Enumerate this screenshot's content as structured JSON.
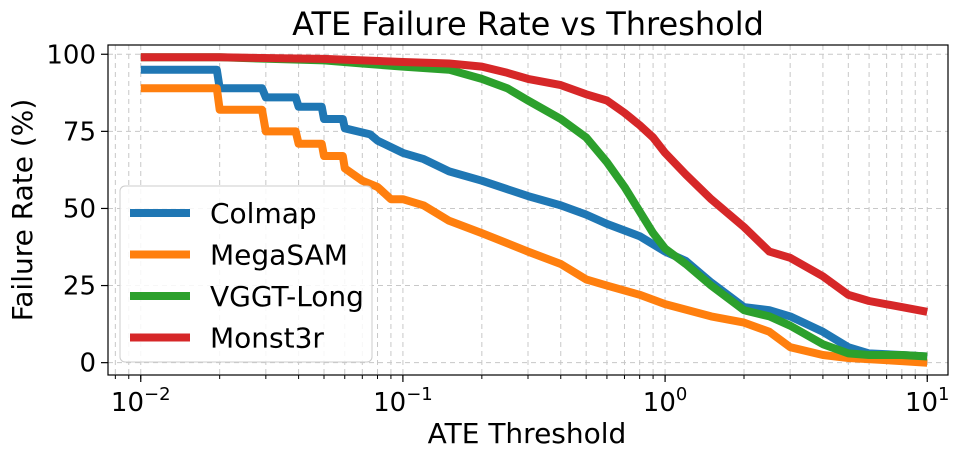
{
  "chart_data": {
    "type": "line",
    "title": "ATE Failure Rate vs Threshold",
    "xlabel": "ATE Threshold",
    "ylabel": "Failure Rate (%)",
    "xscale": "log",
    "xlim": [
      0.0075,
      12
    ],
    "ylim": [
      -4,
      103
    ],
    "grid": true,
    "legend_position": "lower-left",
    "x_ticks": [
      {
        "value": 0.01,
        "base": "10",
        "exp": "−2"
      },
      {
        "value": 0.1,
        "base": "10",
        "exp": "−1"
      },
      {
        "value": 1,
        "base": "10",
        "exp": "0"
      },
      {
        "value": 10,
        "base": "10",
        "exp": "1"
      }
    ],
    "y_ticks": [
      0,
      25,
      50,
      75,
      100
    ],
    "series": [
      {
        "name": "Colmap",
        "color": "#1f77b4",
        "x": [
          0.01,
          0.0195,
          0.02,
          0.029,
          0.03,
          0.039,
          0.04,
          0.049,
          0.05,
          0.059,
          0.06,
          0.075,
          0.08,
          0.1,
          0.12,
          0.15,
          0.2,
          0.3,
          0.4,
          0.5,
          0.6,
          0.8,
          1.0,
          1.2,
          1.5,
          2.0,
          2.5,
          3.0,
          4.0,
          5.0,
          6.0,
          8.0,
          10.0
        ],
        "values": [
          95,
          95,
          89,
          89,
          86,
          86,
          83,
          83,
          79,
          79,
          76,
          74,
          72,
          68,
          66,
          62,
          59,
          54,
          51,
          48,
          45,
          41,
          36,
          33,
          26,
          18,
          17,
          15,
          10,
          5,
          3,
          2.5,
          2
        ]
      },
      {
        "name": "MegaSAM",
        "color": "#ff7f0e",
        "x": [
          0.01,
          0.0195,
          0.02,
          0.029,
          0.03,
          0.039,
          0.04,
          0.049,
          0.05,
          0.059,
          0.06,
          0.07,
          0.08,
          0.09,
          0.1,
          0.12,
          0.15,
          0.2,
          0.3,
          0.4,
          0.5,
          0.6,
          0.8,
          1.0,
          1.5,
          2.0,
          2.5,
          3.0,
          4.0,
          5.0,
          8.0,
          10.0
        ],
        "values": [
          89,
          89,
          82,
          82,
          75,
          75,
          71,
          71,
          67,
          67,
          63,
          59,
          57,
          53,
          53,
          51,
          46,
          42,
          36,
          32,
          27,
          25,
          22,
          19,
          15,
          13,
          10,
          5,
          2.5,
          1.5,
          0.5,
          0
        ]
      },
      {
        "name": "VGGT-Long",
        "color": "#2ca02c",
        "x": [
          0.01,
          0.02,
          0.05,
          0.07,
          0.1,
          0.15,
          0.2,
          0.25,
          0.3,
          0.4,
          0.5,
          0.6,
          0.7,
          0.8,
          0.9,
          1.0,
          1.2,
          1.5,
          2.0,
          2.5,
          3.0,
          4.0,
          5.0,
          6.0,
          8.0,
          10.0
        ],
        "values": [
          99,
          99,
          98,
          97,
          96,
          95,
          92,
          89,
          85,
          79,
          73,
          65,
          57,
          49,
          42,
          37,
          32,
          25,
          17,
          15,
          12,
          6,
          3,
          2.5,
          2.5,
          2
        ]
      },
      {
        "name": "Monst3r",
        "color": "#d62728",
        "x": [
          0.01,
          0.02,
          0.05,
          0.1,
          0.15,
          0.2,
          0.25,
          0.3,
          0.4,
          0.5,
          0.6,
          0.7,
          0.8,
          0.9,
          1.0,
          1.2,
          1.5,
          2.0,
          2.5,
          3.0,
          4.0,
          5.0,
          6.0,
          8.0,
          10.0
        ],
        "values": [
          99,
          99,
          98.5,
          97.5,
          97,
          96,
          94,
          92,
          90,
          87,
          85,
          81,
          77,
          73,
          68,
          61,
          53,
          44,
          36,
          34,
          28,
          22,
          20,
          18,
          16.5
        ]
      }
    ]
  }
}
